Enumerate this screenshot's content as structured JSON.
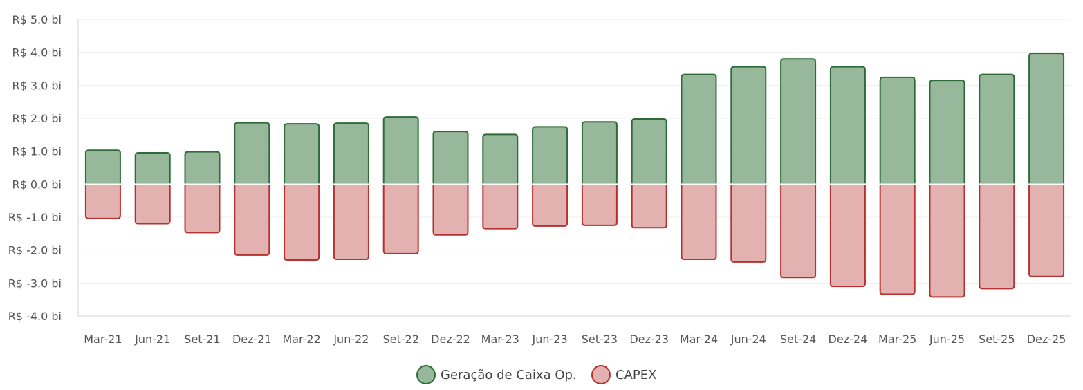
{
  "chart_data": {
    "type": "bar",
    "categories": [
      "Mar-21",
      "Jun-21",
      "Set-21",
      "Dez-21",
      "Mar-22",
      "Jun-22",
      "Set-22",
      "Dez-22",
      "Mar-23",
      "Jun-23",
      "Set-23",
      "Dez-23",
      "Mar-24",
      "Jun-24",
      "Set-24",
      "Dez-24",
      "Mar-25",
      "Jun-25",
      "Set-25",
      "Dez-25"
    ],
    "series": [
      {
        "name": "Geração de Caixa Op.",
        "values": [
          1.03,
          0.95,
          0.98,
          1.86,
          1.83,
          1.85,
          2.04,
          1.6,
          1.51,
          1.74,
          1.89,
          1.98,
          3.33,
          3.56,
          3.8,
          3.56,
          3.24,
          3.15,
          3.33,
          3.97
        ],
        "color": "#97b89a",
        "border": "#2e6b36"
      },
      {
        "name": "CAPEX",
        "values": [
          -1.04,
          -1.2,
          -1.47,
          -2.15,
          -2.3,
          -2.28,
          -2.11,
          -1.54,
          -1.35,
          -1.27,
          -1.25,
          -1.32,
          -2.28,
          -2.36,
          -2.83,
          -3.1,
          -3.34,
          -3.42,
          -3.17,
          -2.8
        ],
        "color": "#e3b1b0",
        "border": "#b5312f"
      }
    ],
    "ylim": [
      -4,
      5
    ],
    "yticks": [
      5,
      4,
      3,
      2,
      1,
      0,
      -1,
      -2,
      -3,
      -4
    ],
    "ytick_labels": [
      "R$ 5.0 bi",
      "R$ 4.0 bi",
      "R$ 3.0 bi",
      "R$ 2.0 bi",
      "R$ 1.0 bi",
      "R$ 0.0 bi",
      "R$ -1.0 bi",
      "R$ -2.0 bi",
      "R$ -3.0 bi",
      "R$ -4.0 bi"
    ],
    "grid": true,
    "legend": "bottom-center"
  }
}
